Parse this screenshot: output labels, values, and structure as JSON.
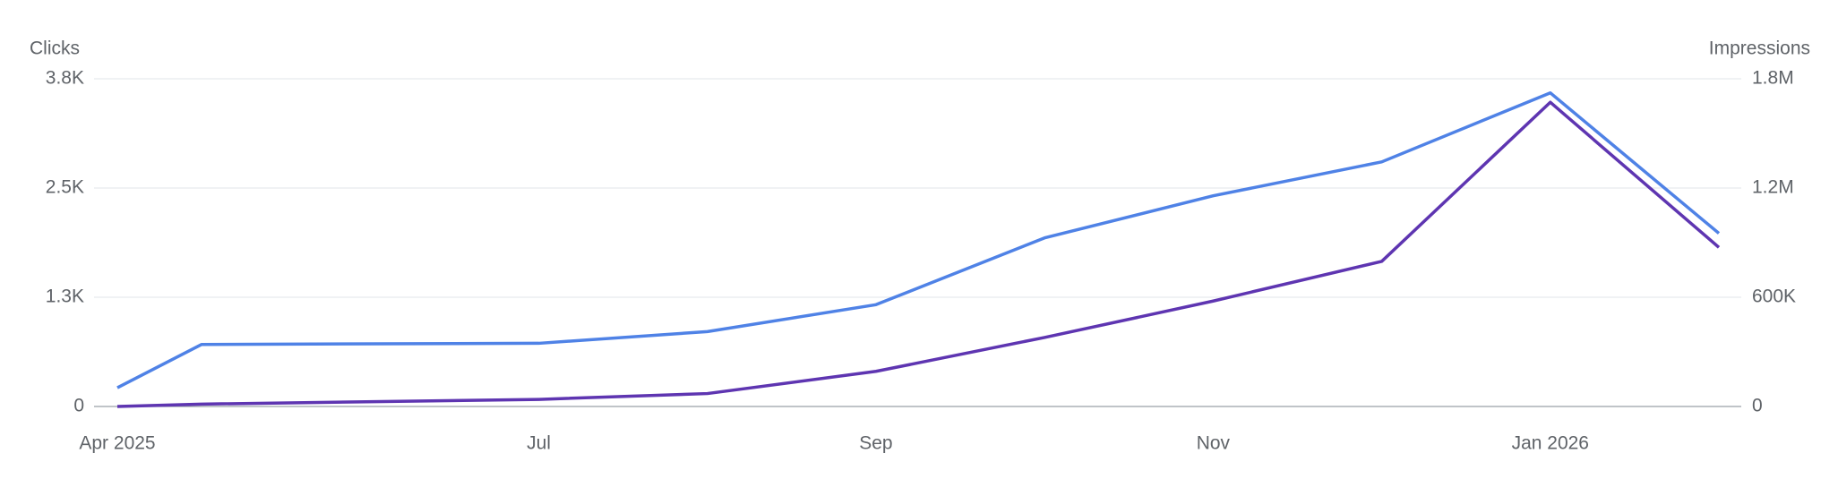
{
  "chart_data": {
    "type": "line",
    "y_label": "Clicks",
    "y2_label": "Impressions",
    "x": [
      0,
      0.5,
      2.5,
      3.5,
      4.5,
      5.5,
      6.5,
      7.5,
      8.5,
      9.5
    ],
    "xlim": [
      0,
      9.5
    ],
    "xticks": [
      {
        "value": 0,
        "label": "Apr 2025"
      },
      {
        "value": 2.5,
        "label": "Jul"
      },
      {
        "value": 4.5,
        "label": "Sep"
      },
      {
        "value": 6.5,
        "label": "Nov"
      },
      {
        "value": 8.5,
        "label": "Jan 2026"
      }
    ],
    "ylim": [
      0,
      3750
    ],
    "yticks": [
      0,
      {
        "value": 1250,
        "label": "1.3K"
      },
      {
        "value": 2500,
        "label": "2.5K"
      },
      {
        "value": 3750,
        "label": "3.8K"
      }
    ],
    "y2lim": [
      0,
      1800000
    ],
    "y2ticks": [
      0,
      {
        "value": 600000,
        "label": "600K"
      },
      {
        "value": 1200000,
        "label": "1.2M"
      },
      {
        "value": 1800000,
        "label": "1.8M"
      }
    ],
    "grid": true,
    "series": [
      {
        "name": "Clicks",
        "color": "#4f82e6",
        "values": [
          214,
          710,
          723,
          857,
          1165,
          1929,
          2411,
          2799,
          3589,
          1982
        ]
      },
      {
        "name": "Impressions",
        "color": "#5e35b1",
        "axis": "y2",
        "values": [
          0,
          13000,
          39000,
          71000,
          193000,
          379000,
          579000,
          797000,
          1671000,
          874000
        ]
      }
    ]
  }
}
